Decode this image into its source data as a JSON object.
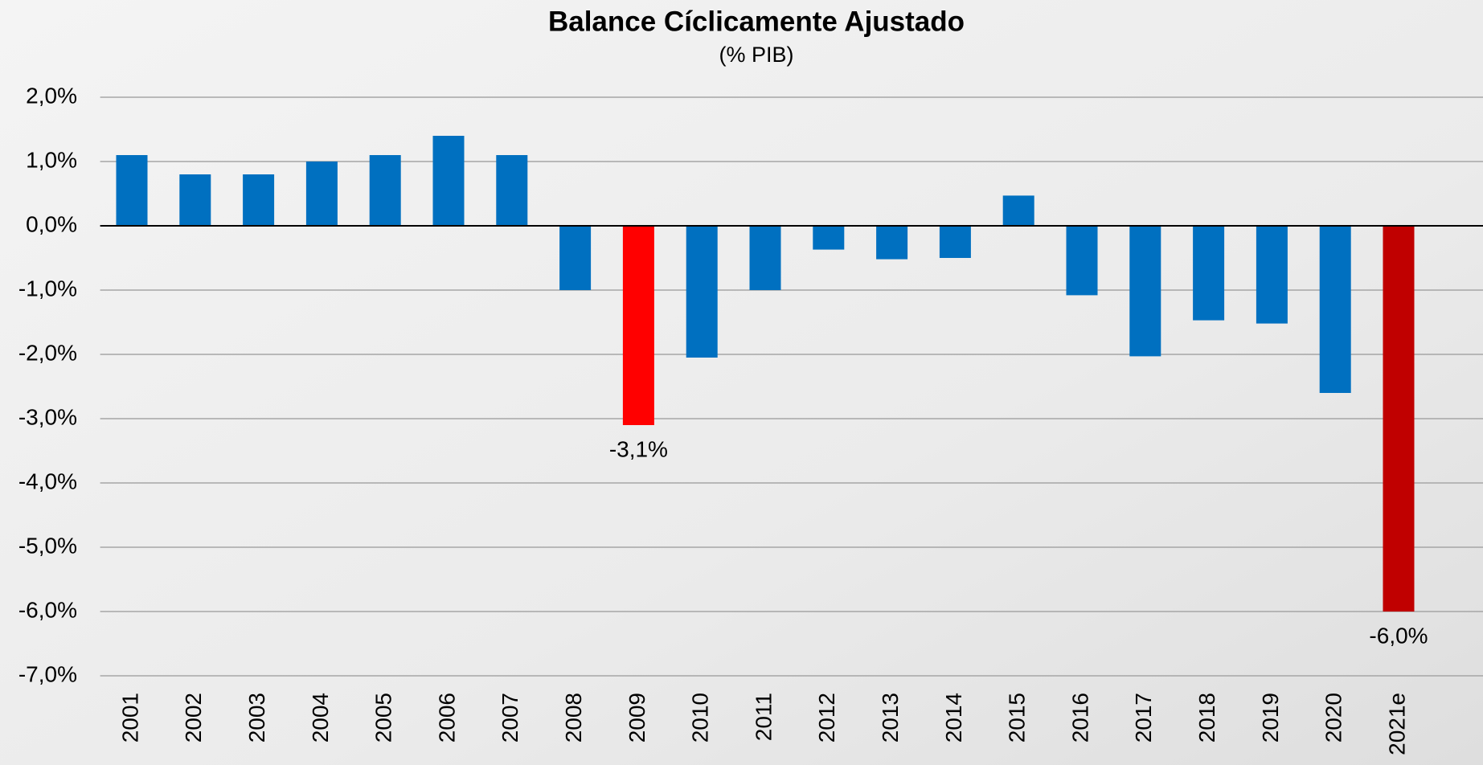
{
  "chart_data": {
    "type": "bar",
    "title": "Balance Cíclicamente Ajustado",
    "subtitle": "(% PIB)",
    "categories": [
      "2001",
      "2002",
      "2003",
      "2004",
      "2005",
      "2006",
      "2007",
      "2008",
      "2009",
      "2010",
      "2011",
      "2012",
      "2013",
      "2014",
      "2015",
      "2016",
      "2017",
      "2018",
      "2019",
      "2020",
      "2021e"
    ],
    "values": [
      1.1,
      0.8,
      0.8,
      1.0,
      1.1,
      1.4,
      1.1,
      -1.0,
      -3.1,
      -2.05,
      -1.0,
      -0.37,
      -0.52,
      -0.5,
      0.47,
      -1.08,
      -2.03,
      -1.47,
      -1.52,
      -2.6,
      -6.0
    ],
    "value_labels": [
      null,
      null,
      null,
      null,
      null,
      null,
      null,
      null,
      "-3,1%",
      null,
      null,
      null,
      null,
      null,
      null,
      null,
      null,
      null,
      null,
      null,
      "-6,0%"
    ],
    "colors": [
      "#0070c0",
      "#0070c0",
      "#0070c0",
      "#0070c0",
      "#0070c0",
      "#0070c0",
      "#0070c0",
      "#0070c0",
      "#ff0000",
      "#0070c0",
      "#0070c0",
      "#0070c0",
      "#0070c0",
      "#0070c0",
      "#0070c0",
      "#0070c0",
      "#0070c0",
      "#0070c0",
      "#0070c0",
      "#0070c0",
      "#c00000"
    ],
    "ylim": [
      -7,
      2
    ],
    "yticks": [
      {
        "value": -7,
        "label": "-7,0%"
      },
      {
        "value": -6,
        "label": "-6,0%"
      },
      {
        "value": -5,
        "label": "-5,0%"
      },
      {
        "value": -4,
        "label": "-4,0%"
      },
      {
        "value": -3,
        "label": "-3,0%"
      },
      {
        "value": -2,
        "label": "-2,0%"
      },
      {
        "value": -1,
        "label": "-1,0%"
      },
      {
        "value": 0,
        "label": "0,0%"
      },
      {
        "value": 1,
        "label": "1,0%"
      },
      {
        "value": 2,
        "label": "2,0%"
      }
    ],
    "grid": true
  }
}
